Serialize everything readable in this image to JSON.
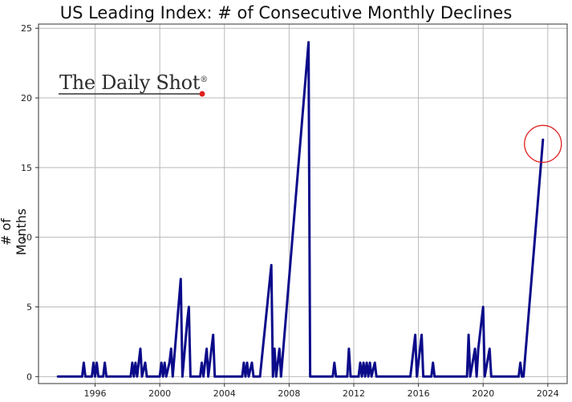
{
  "chart_data": {
    "type": "line",
    "title": "US Leading Index: # of Consecutive Monthly Declines",
    "xlabel": "",
    "ylabel": "# of Months",
    "xlim": [
      1992.5,
      2025.2
    ],
    "ylim": [
      -0.5,
      25.3
    ],
    "x_ticks": [
      1996,
      2000,
      2004,
      2008,
      2012,
      2016,
      2020,
      2024
    ],
    "y_ticks": [
      0,
      5,
      10,
      15,
      20,
      25
    ],
    "grid": true,
    "series": [
      {
        "color": "#0b0b8a",
        "points": [
          [
            1993.7,
            0
          ],
          [
            1995.2,
            0
          ],
          [
            1995.3,
            1
          ],
          [
            1995.4,
            0
          ],
          [
            1995.8,
            0
          ],
          [
            1995.9,
            1
          ],
          [
            1996.0,
            0
          ],
          [
            1996.1,
            1
          ],
          [
            1996.2,
            0
          ],
          [
            1996.5,
            0
          ],
          [
            1996.6,
            1
          ],
          [
            1996.7,
            0
          ],
          [
            1998.2,
            0
          ],
          [
            1998.3,
            1
          ],
          [
            1998.4,
            0
          ],
          [
            1998.5,
            1
          ],
          [
            1998.6,
            0
          ],
          [
            1998.7,
            1
          ],
          [
            1998.8,
            2
          ],
          [
            1998.9,
            0
          ],
          [
            1999.1,
            1
          ],
          [
            1999.2,
            0
          ],
          [
            2000.0,
            0
          ],
          [
            2000.1,
            1
          ],
          [
            2000.2,
            0
          ],
          [
            2000.3,
            1
          ],
          [
            2000.4,
            0
          ],
          [
            2000.6,
            1
          ],
          [
            2000.7,
            2
          ],
          [
            2000.8,
            0
          ],
          [
            2001.3,
            7
          ],
          [
            2001.4,
            0
          ],
          [
            2001.7,
            4
          ],
          [
            2001.8,
            5
          ],
          [
            2001.9,
            0
          ],
          [
            2002.5,
            0
          ],
          [
            2002.6,
            1
          ],
          [
            2002.7,
            0
          ],
          [
            2002.8,
            1
          ],
          [
            2002.9,
            2
          ],
          [
            2003.0,
            0
          ],
          [
            2003.2,
            2
          ],
          [
            2003.3,
            3
          ],
          [
            2003.4,
            0
          ],
          [
            2005.1,
            0
          ],
          [
            2005.2,
            1
          ],
          [
            2005.3,
            0
          ],
          [
            2005.4,
            1
          ],
          [
            2005.5,
            0
          ],
          [
            2005.7,
            1
          ],
          [
            2005.8,
            0
          ],
          [
            2006.2,
            0
          ],
          [
            2006.9,
            8
          ],
          [
            2007.0,
            0
          ],
          [
            2007.1,
            2
          ],
          [
            2007.2,
            0
          ],
          [
            2007.4,
            2
          ],
          [
            2007.5,
            0
          ],
          [
            2009.2,
            24
          ],
          [
            2009.3,
            0
          ],
          [
            2010.7,
            0
          ],
          [
            2010.8,
            1
          ],
          [
            2010.9,
            0
          ],
          [
            2011.6,
            0
          ],
          [
            2011.7,
            2
          ],
          [
            2011.8,
            0
          ],
          [
            2012.3,
            0
          ],
          [
            2012.4,
            1
          ],
          [
            2012.5,
            0
          ],
          [
            2012.6,
            1
          ],
          [
            2012.7,
            0
          ],
          [
            2012.8,
            1
          ],
          [
            2012.9,
            0
          ],
          [
            2013.0,
            1
          ],
          [
            2013.1,
            0
          ],
          [
            2013.3,
            1
          ],
          [
            2013.4,
            0
          ],
          [
            2015.5,
            0
          ],
          [
            2015.8,
            3
          ],
          [
            2015.9,
            0
          ],
          [
            2016.2,
            3
          ],
          [
            2016.3,
            0
          ],
          [
            2016.8,
            0
          ],
          [
            2016.9,
            1
          ],
          [
            2017.0,
            0
          ],
          [
            2019.0,
            0
          ],
          [
            2019.1,
            3
          ],
          [
            2019.2,
            0
          ],
          [
            2019.5,
            2
          ],
          [
            2019.6,
            0
          ],
          [
            2019.7,
            2
          ],
          [
            2020.0,
            5
          ],
          [
            2020.1,
            0
          ],
          [
            2020.4,
            2
          ],
          [
            2020.5,
            0
          ],
          [
            2022.2,
            0
          ],
          [
            2022.3,
            1
          ],
          [
            2022.4,
            0
          ],
          [
            2022.5,
            0
          ],
          [
            2023.7,
            17
          ]
        ]
      }
    ],
    "annotations": [
      {
        "type": "circle",
        "x": 2023.7,
        "y": 16.7,
        "color": "#e02020"
      }
    ]
  },
  "logo": {
    "text": "The Daily Shot",
    "mark": "®",
    "dot_color": "#e0201e"
  },
  "colors": {
    "line": "#0b0b8a",
    "grid": "#b9b9b9",
    "annotation": "#e02020"
  }
}
